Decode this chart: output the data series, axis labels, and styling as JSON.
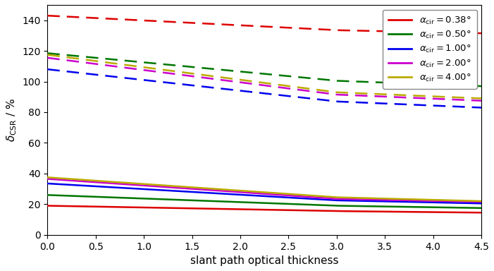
{
  "xlabel": "slant path optical thickness",
  "ylabel": "$\\delta_{\\mathrm{CSR}}$ / %",
  "xlim": [
    0,
    4.5
  ],
  "ylim": [
    0,
    150
  ],
  "yticks": [
    0,
    20,
    40,
    60,
    80,
    100,
    120,
    140
  ],
  "xticks": [
    0.0,
    0.5,
    1.0,
    1.5,
    2.0,
    2.5,
    3.0,
    3.5,
    4.0,
    4.5
  ],
  "series": [
    {
      "label": "$\\alpha_{\\mathrm{cir}}=0.38°$",
      "color": "#dd0000",
      "solid_y0": 19.0,
      "solid_y3": 15.5,
      "solid_y45": 14.5,
      "dashed_y0": 143.0,
      "dashed_y3": 133.5,
      "dashed_y45": 131.5
    },
    {
      "label": "$\\alpha_{\\mathrm{cir}}=0.50°$",
      "color": "#007700",
      "solid_y0": 26.0,
      "solid_y3": 19.0,
      "solid_y45": 17.5,
      "dashed_y0": 118.5,
      "dashed_y3": 100.5,
      "dashed_y45": 97.0
    },
    {
      "label": "$\\alpha_{\\mathrm{cir}}=1.00°$",
      "color": "#0000ee",
      "solid_y0": 33.5,
      "solid_y3": 22.5,
      "solid_y45": 20.5,
      "dashed_y0": 108.0,
      "dashed_y3": 87.0,
      "dashed_y45": 83.0
    },
    {
      "label": "$\\alpha_{\\mathrm{cir}}=2.00°$",
      "color": "#cc00cc",
      "solid_y0": 36.5,
      "solid_y3": 23.5,
      "solid_y45": 21.5,
      "dashed_y0": 115.5,
      "dashed_y3": 91.5,
      "dashed_y45": 87.5
    },
    {
      "label": "$\\alpha_{\\mathrm{cir}}=4.00°$",
      "color": "#bbaa00",
      "solid_y0": 37.5,
      "solid_y3": 24.5,
      "solid_y45": 22.0,
      "dashed_y0": 117.5,
      "dashed_y3": 93.0,
      "dashed_y45": 89.0
    }
  ],
  "figsize": [
    7.01,
    3.84
  ],
  "dpi": 100
}
